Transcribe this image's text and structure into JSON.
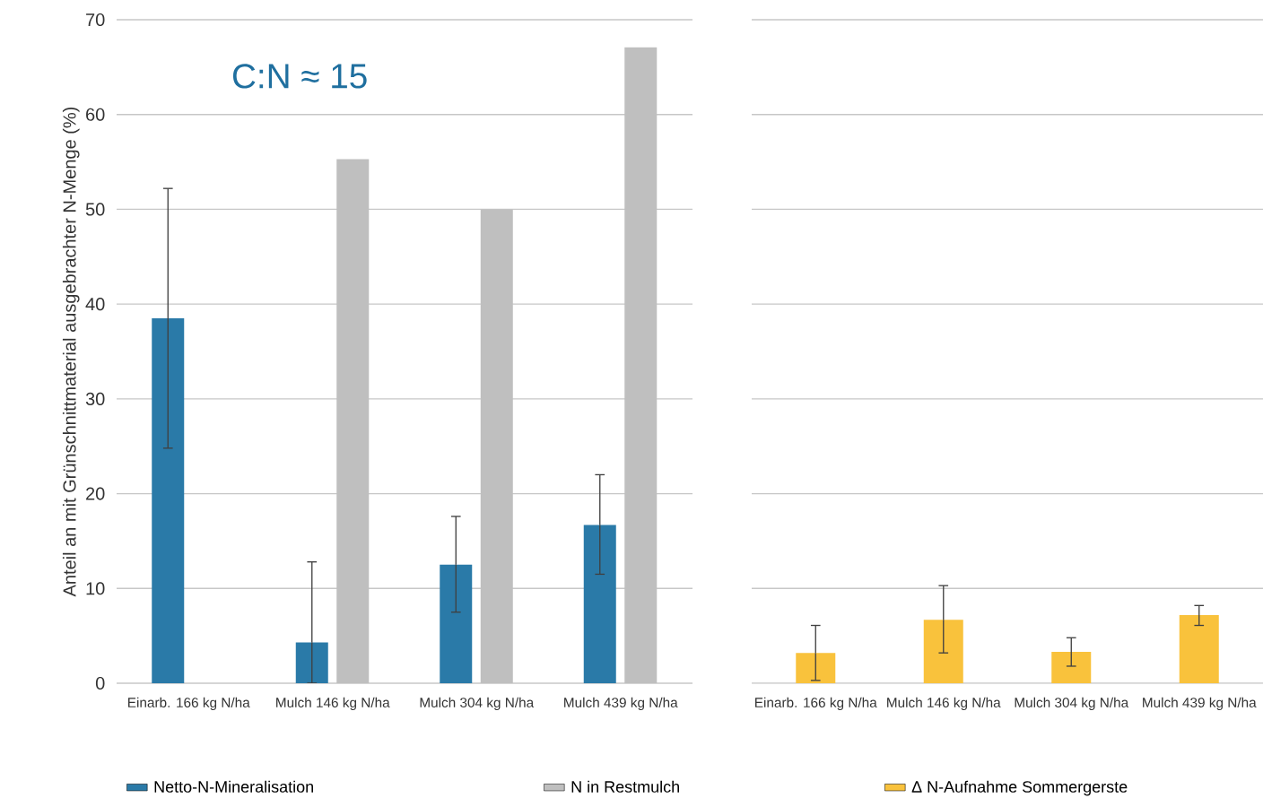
{
  "chart_data": [
    {
      "type": "bar",
      "ylabel": "Anteil an mit Grünschnittmaterial ausgebrachter N-Menge (%)",
      "categories": [
        "Einarb. 166 kg N/ha",
        "Mulch 146 kg N/ha",
        "Mulch 304 kg N/ha",
        "Mulch 439 kg N/ha"
      ],
      "series": [
        {
          "name": "Netto-N-Mineralisation",
          "color": "#2a7aa8",
          "values": [
            38.5,
            4.3,
            12.5,
            16.7
          ],
          "errors": [
            [
              24.8,
              52.2
            ],
            [
              0,
              12.8
            ],
            [
              7.5,
              17.6
            ],
            [
              11.5,
              22.0
            ]
          ]
        },
        {
          "name": "N in Restmulch",
          "color": "#bfbfbf",
          "values": [
            null,
            55.3,
            50.0,
            67.1
          ]
        }
      ],
      "ylim": [
        0,
        70
      ],
      "yticks": [
        0,
        10,
        20,
        30,
        40,
        50,
        60,
        70
      ],
      "grid": "y",
      "legend": "bottom",
      "annotations": [
        "C:N ≈ 15"
      ]
    },
    {
      "type": "bar",
      "categories": [
        "Einarb. 166 kg N/ha",
        "Mulch 146 kg N/ha",
        "Mulch 304 kg N/ha",
        "Mulch 439 kg N/ha"
      ],
      "series": [
        {
          "name": "Δ N-Aufnahme Sommergerste",
          "color": "#f9c23c",
          "values": [
            3.2,
            6.7,
            3.3,
            7.2
          ],
          "errors": [
            [
              0.3,
              6.1
            ],
            [
              3.2,
              10.3
            ],
            [
              1.8,
              4.8
            ],
            [
              6.1,
              8.2
            ]
          ]
        }
      ],
      "ylim": [
        0,
        70
      ],
      "yticks": [
        0,
        10,
        20,
        30,
        40,
        50,
        60,
        70
      ],
      "grid": "y",
      "legend": "bottom",
      "tick_labels": "x"
    }
  ]
}
